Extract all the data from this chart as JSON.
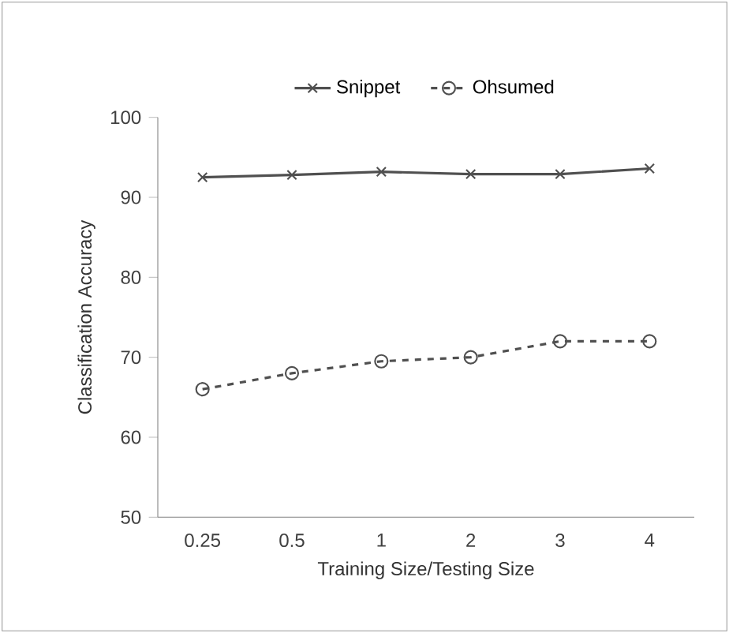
{
  "chart_data": {
    "type": "line",
    "xlabel": "Training Size/Testing Size",
    "ylabel": "Classification Accuracy",
    "categories": [
      "0.25",
      "0.5",
      "1",
      "2",
      "3",
      "4"
    ],
    "series": [
      {
        "name": "Snippet",
        "color": "#505050",
        "values": [
          92.5,
          92.8,
          93.2,
          92.9,
          92.9,
          93.6
        ],
        "marker": "cross",
        "line_style": "solid"
      },
      {
        "name": "Ohsumed",
        "color": "#505050",
        "values": [
          66,
          68,
          69.5,
          70,
          72,
          72
        ],
        "marker": "circle",
        "line_style": "dashed"
      }
    ],
    "ylim": [
      50,
      100
    ],
    "yticks": [
      50,
      60,
      70,
      80,
      90,
      100
    ],
    "legend": "top",
    "grid": false
  }
}
